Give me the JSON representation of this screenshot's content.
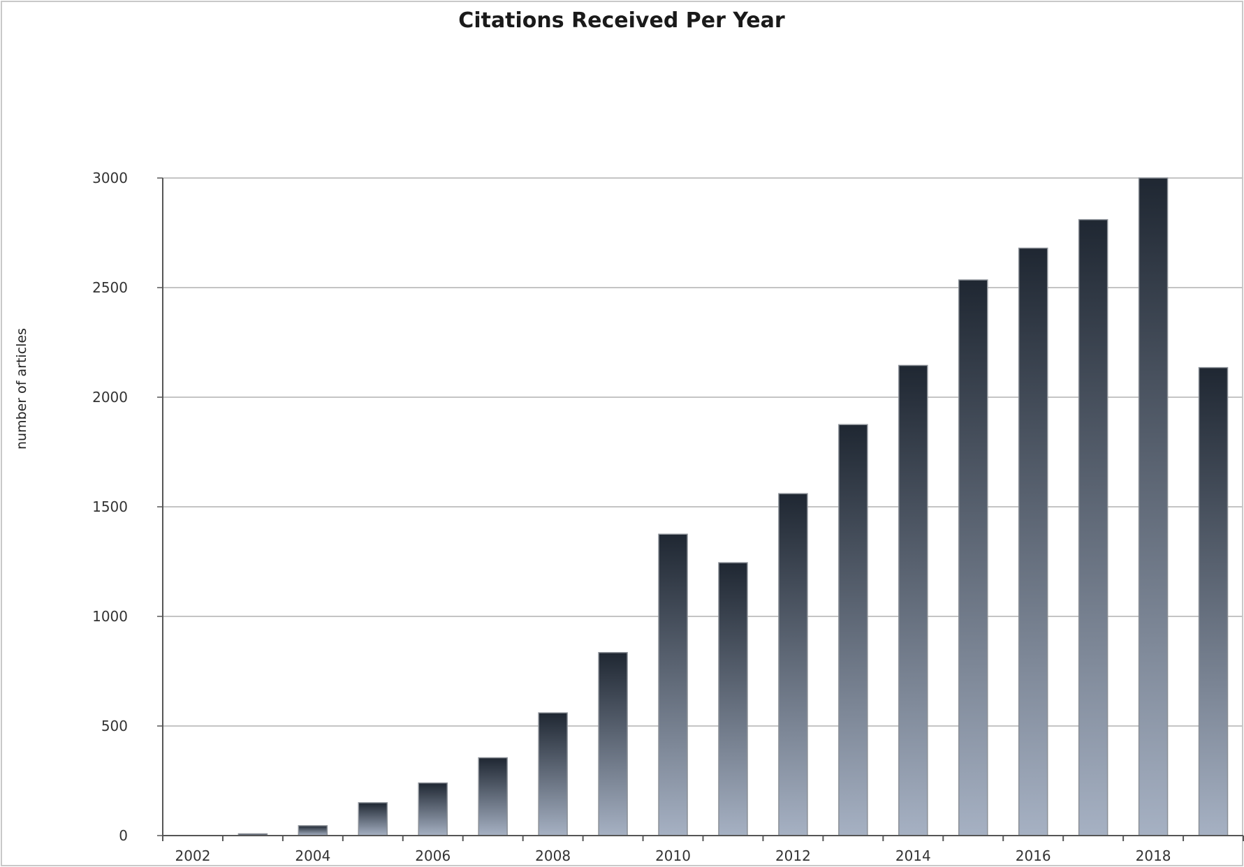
{
  "chart_data": {
    "type": "bar",
    "title": "Citations Received Per Year",
    "xlabel": "",
    "ylabel": "number of articles",
    "categories": [
      "2002",
      "2003",
      "2004",
      "2005",
      "2006",
      "2007",
      "2008",
      "2009",
      "2010",
      "2011",
      "2012",
      "2013",
      "2014",
      "2015",
      "2016",
      "2017",
      "2018",
      "2019"
    ],
    "values": [
      0,
      8,
      45,
      150,
      240,
      355,
      560,
      835,
      1375,
      1245,
      1560,
      1875,
      2145,
      2535,
      2680,
      2810,
      3000,
      2135
    ],
    "x_tick_labels": [
      "2002",
      "2004",
      "2006",
      "2008",
      "2010",
      "2012",
      "2014",
      "2016",
      "2018"
    ],
    "y_ticks": [
      0,
      500,
      1000,
      1500,
      2000,
      2500,
      3000
    ],
    "ylim": [
      0,
      3000
    ],
    "grid": "horizontal",
    "legend": "none",
    "colors": {
      "bar_top": "#1f2732",
      "bar_bottom": "#a6b1c3",
      "bar_edge": "#8a8f96",
      "grid": "#c4c4c4",
      "axis": "#555555",
      "frame": "#c8c8c8"
    }
  }
}
